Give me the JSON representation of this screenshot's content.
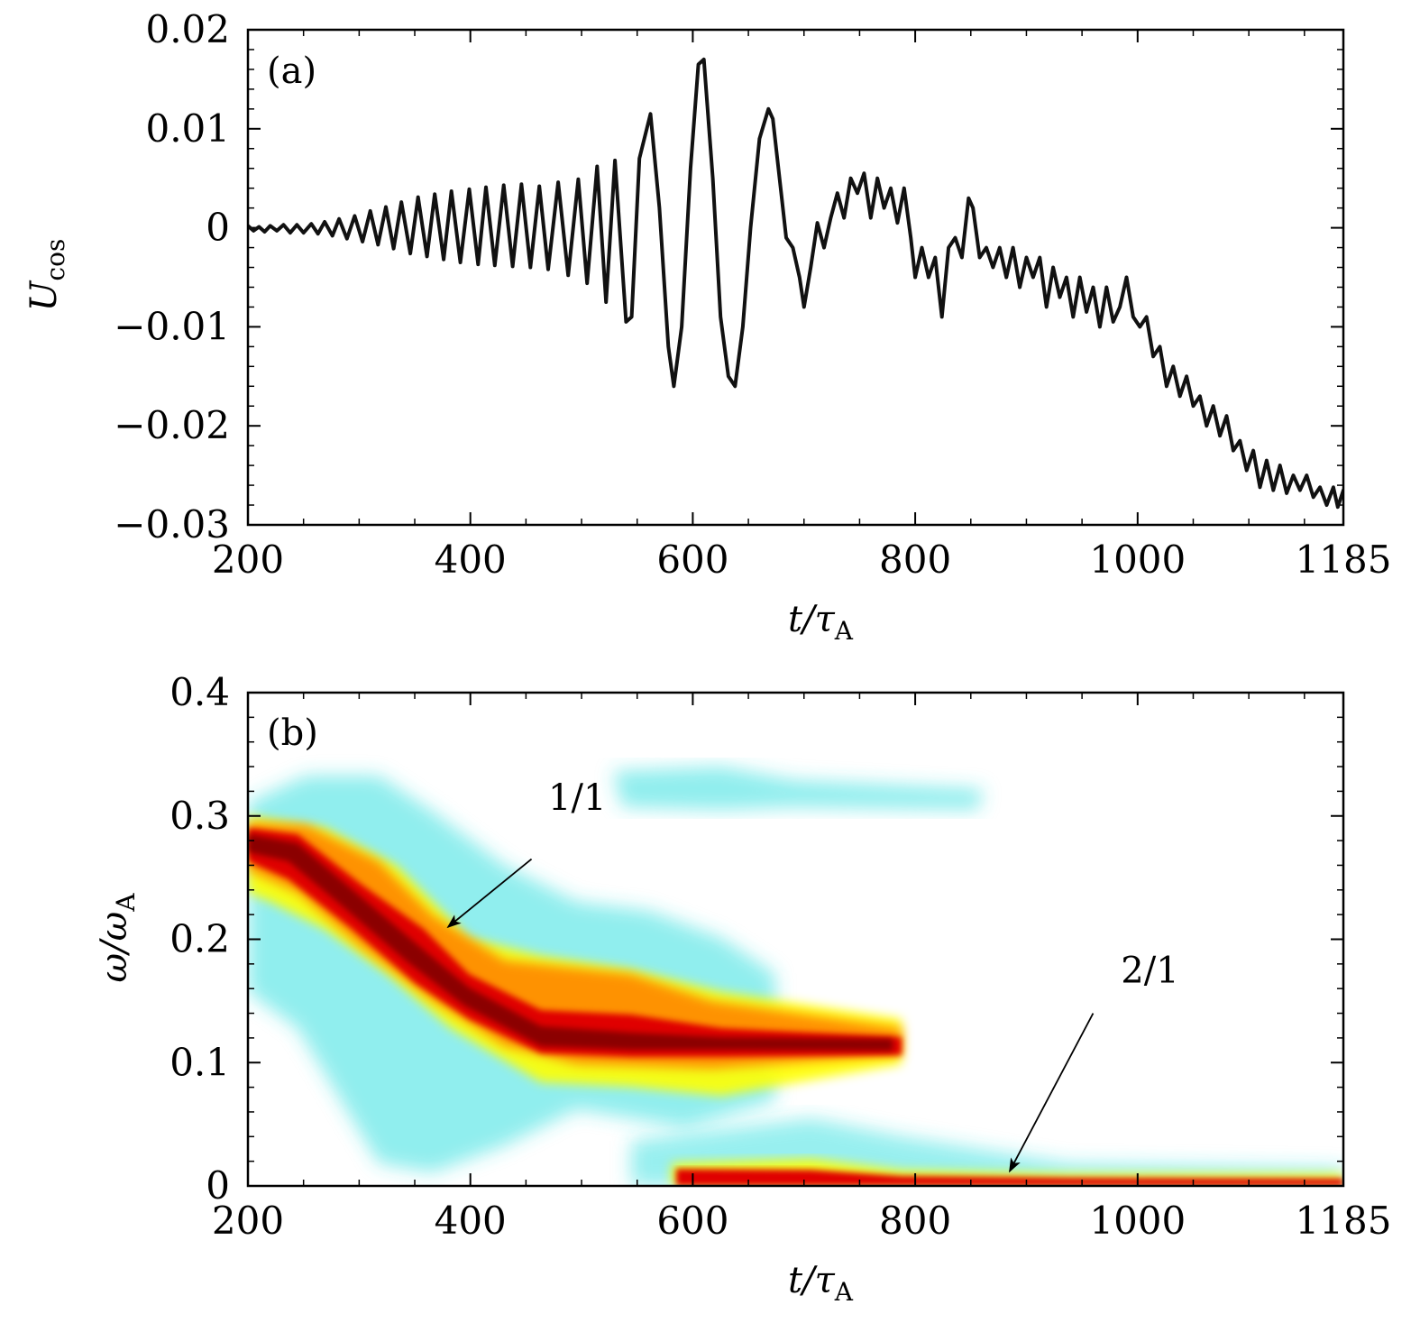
{
  "chart_data": [
    {
      "type": "line",
      "panel_label": "(a)",
      "xlabel": "t/τ_A",
      "ylabel": "U_cos",
      "xlim": [
        200,
        1185
      ],
      "ylim": [
        -0.03,
        0.02
      ],
      "x_ticks": [
        200,
        400,
        600,
        800,
        1000,
        1185
      ],
      "x_tick_labels": [
        "200",
        "400",
        "600",
        "800",
        "1000",
        "1185"
      ],
      "y_ticks": [
        0.02,
        0.01,
        0,
        -0.01,
        -0.02,
        -0.03
      ],
      "y_tick_labels": [
        "0.02",
        "0.01",
        "0",
        "−0.01",
        "−0.02",
        "−0.03"
      ],
      "grid": false,
      "line_color": "#111111",
      "series": [
        {
          "points": [
            [
              200,
              0.0002
            ],
            [
              205,
              -0.0003
            ],
            [
              210,
              0.0001
            ],
            [
              215,
              -0.0004
            ],
            [
              220,
              0.0002
            ],
            [
              226,
              -0.0003
            ],
            [
              232,
              0.0003
            ],
            [
              238,
              -0.0005
            ],
            [
              244,
              0.0003
            ],
            [
              250,
              -0.0005
            ],
            [
              257,
              0.0004
            ],
            [
              263,
              -0.0006
            ],
            [
              269,
              0.0006
            ],
            [
              276,
              -0.0008
            ],
            [
              282,
              0.0009
            ],
            [
              289,
              -0.0011
            ],
            [
              296,
              0.0012
            ],
            [
              303,
              -0.0014
            ],
            [
              310,
              0.0017
            ],
            [
              317,
              -0.0017
            ],
            [
              324,
              0.0021
            ],
            [
              331,
              -0.0021
            ],
            [
              338,
              0.0026
            ],
            [
              346,
              -0.0026
            ],
            [
              353,
              0.0031
            ],
            [
              361,
              -0.0029
            ],
            [
              368,
              0.0034
            ],
            [
              376,
              -0.0032
            ],
            [
              383,
              0.0037
            ],
            [
              391,
              -0.0035
            ],
            [
              399,
              0.0039
            ],
            [
              407,
              -0.0037
            ],
            [
              414,
              0.0041
            ],
            [
              422,
              -0.0038
            ],
            [
              430,
              0.0043
            ],
            [
              438,
              -0.0039
            ],
            [
              446,
              0.0044
            ],
            [
              454,
              -0.004
            ],
            [
              462,
              0.0042
            ],
            [
              470,
              -0.0042
            ],
            [
              479,
              0.0046
            ],
            [
              488,
              -0.0048
            ],
            [
              497,
              0.0049
            ],
            [
              505,
              -0.0056
            ],
            [
              514,
              0.0062
            ],
            [
              522,
              -0.0075
            ],
            [
              530,
              0.0068
            ],
            [
              540,
              -0.0095
            ],
            [
              545,
              -0.009
            ],
            [
              552,
              0.007
            ],
            [
              562,
              0.0115
            ],
            [
              570,
              0.002
            ],
            [
              578,
              -0.012
            ],
            [
              583,
              -0.016
            ],
            [
              590,
              -0.01
            ],
            [
              598,
              0.006
            ],
            [
              605,
              0.0165
            ],
            [
              610,
              0.017
            ],
            [
              618,
              0.005
            ],
            [
              625,
              -0.009
            ],
            [
              632,
              -0.015
            ],
            [
              638,
              -0.016
            ],
            [
              645,
              -0.01
            ],
            [
              652,
              0.0
            ],
            [
              660,
              0.009
            ],
            [
              668,
              0.012
            ],
            [
              672,
              0.011
            ],
            [
              680,
              0.003
            ],
            [
              684,
              -0.001
            ],
            [
              690,
              -0.002
            ],
            [
              696,
              -0.005
            ],
            [
              700,
              -0.008
            ],
            [
              706,
              -0.004
            ],
            [
              712,
              0.0005
            ],
            [
              718,
              -0.002
            ],
            [
              724,
              0.001
            ],
            [
              730,
              0.0035
            ],
            [
              736,
              0.001
            ],
            [
              742,
              0.005
            ],
            [
              748,
              0.0035
            ],
            [
              754,
              0.0055
            ],
            [
              760,
              0.001
            ],
            [
              766,
              0.005
            ],
            [
              772,
              0.002
            ],
            [
              778,
              0.004
            ],
            [
              784,
              0.0005
            ],
            [
              790,
              0.004
            ],
            [
              796,
              -0.001
            ],
            [
              800,
              -0.005
            ],
            [
              806,
              -0.002
            ],
            [
              812,
              -0.005
            ],
            [
              818,
              -0.003
            ],
            [
              824,
              -0.009
            ],
            [
              830,
              -0.002
            ],
            [
              836,
              -0.001
            ],
            [
              842,
              -0.003
            ],
            [
              848,
              0.003
            ],
            [
              852,
              0.002
            ],
            [
              858,
              -0.003
            ],
            [
              864,
              -0.002
            ],
            [
              870,
              -0.004
            ],
            [
              876,
              -0.002
            ],
            [
              882,
              -0.005
            ],
            [
              888,
              -0.002
            ],
            [
              894,
              -0.006
            ],
            [
              900,
              -0.003
            ],
            [
              906,
              -0.005
            ],
            [
              912,
              -0.003
            ],
            [
              918,
              -0.008
            ],
            [
              924,
              -0.004
            ],
            [
              930,
              -0.007
            ],
            [
              936,
              -0.005
            ],
            [
              942,
              -0.009
            ],
            [
              948,
              -0.005
            ],
            [
              954,
              -0.0085
            ],
            [
              960,
              -0.006
            ],
            [
              966,
              -0.01
            ],
            [
              972,
              -0.006
            ],
            [
              978,
              -0.0095
            ],
            [
              984,
              -0.008
            ],
            [
              990,
              -0.005
            ],
            [
              996,
              -0.009
            ],
            [
              1002,
              -0.01
            ],
            [
              1008,
              -0.009
            ],
            [
              1014,
              -0.013
            ],
            [
              1020,
              -0.012
            ],
            [
              1026,
              -0.016
            ],
            [
              1032,
              -0.014
            ],
            [
              1038,
              -0.017
            ],
            [
              1044,
              -0.015
            ],
            [
              1050,
              -0.018
            ],
            [
              1056,
              -0.017
            ],
            [
              1062,
              -0.02
            ],
            [
              1068,
              -0.018
            ],
            [
              1074,
              -0.021
            ],
            [
              1080,
              -0.019
            ],
            [
              1086,
              -0.0225
            ],
            [
              1092,
              -0.0215
            ],
            [
              1098,
              -0.0245
            ],
            [
              1104,
              -0.0225
            ],
            [
              1110,
              -0.0262
            ],
            [
              1116,
              -0.0235
            ],
            [
              1122,
              -0.0265
            ],
            [
              1128,
              -0.024
            ],
            [
              1134,
              -0.0268
            ],
            [
              1140,
              -0.025
            ],
            [
              1146,
              -0.0265
            ],
            [
              1152,
              -0.025
            ],
            [
              1158,
              -0.0272
            ],
            [
              1164,
              -0.0262
            ],
            [
              1170,
              -0.028
            ],
            [
              1176,
              -0.0262
            ],
            [
              1180,
              -0.0282
            ],
            [
              1185,
              -0.0265
            ]
          ]
        }
      ]
    },
    {
      "type": "heatmap",
      "panel_label": "(b)",
      "xlabel": "t/τ_A",
      "ylabel": "ω/ω_A",
      "xlim": [
        200,
        1185
      ],
      "ylim": [
        0,
        0.4
      ],
      "x_ticks": [
        200,
        400,
        600,
        800,
        1000,
        1185
      ],
      "x_tick_labels": [
        "200",
        "400",
        "600",
        "800",
        "1000",
        "1185"
      ],
      "y_ticks": [
        0.4,
        0.3,
        0.2,
        0.1,
        0
      ],
      "y_tick_labels": [
        "0.4",
        "0.3",
        "0.2",
        "0.1",
        "0"
      ],
      "grid": false,
      "colormap": [
        "#ffffff",
        "#33e0e0",
        "#ffff00",
        "#ff8c00",
        "#e00000",
        "#8b0000"
      ],
      "features": [
        {
          "name": "1/1 mode ridge",
          "points": [
            [
              200,
              0.275
            ],
            [
              300,
              0.245
            ],
            [
              380,
              0.2
            ],
            [
              440,
              0.15
            ],
            [
              500,
              0.12
            ],
            [
              600,
              0.115
            ],
            [
              700,
              0.11
            ],
            [
              790,
              0.11
            ]
          ]
        },
        {
          "name": "2/1 mode ridge",
          "points": [
            [
              750,
              0.014
            ],
            [
              800,
              0.012
            ],
            [
              900,
              0.007
            ],
            [
              1000,
              0.005
            ],
            [
              1100,
              0.004
            ],
            [
              1185,
              0.004
            ]
          ]
        },
        {
          "name": "harmonic band",
          "points": [
            [
              680,
              0.32
            ],
            [
              800,
              0.322
            ],
            [
              860,
              0.318
            ]
          ]
        }
      ],
      "annotations": [
        {
          "text": "1/1",
          "text_at": [
            470,
            0.305
          ],
          "arrow_from": [
            455,
            0.265
          ],
          "arrow_to": [
            380,
            0.21
          ]
        },
        {
          "text": "2/1",
          "text_at": [
            985,
            0.165
          ],
          "arrow_from": [
            960,
            0.14
          ],
          "arrow_to": [
            885,
            0.012
          ]
        }
      ]
    }
  ]
}
